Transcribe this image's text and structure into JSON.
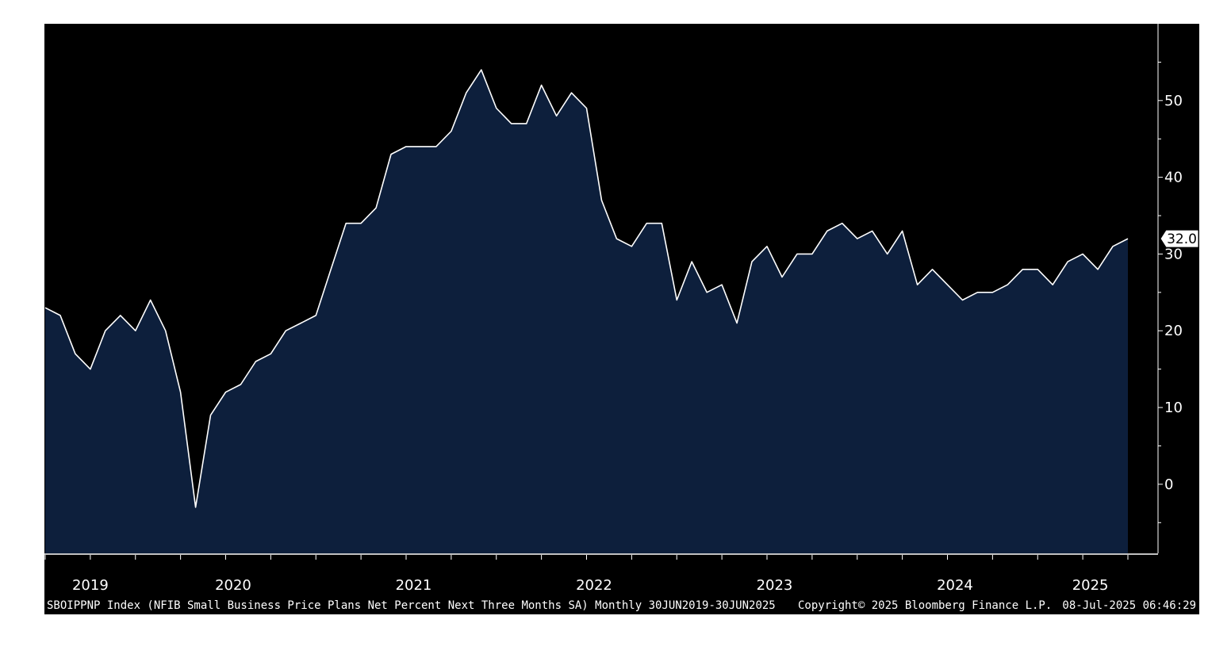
{
  "footer": {
    "description": "SBOIPPNP Index (NFIB Small Business Price Plans Net Percent Next Three Months SA)  Monthly 30JUN2019-30JUN2025",
    "copyright": "Copyright© 2025 Bloomberg Finance L.P.",
    "timestamp": "08-Jul-2025 06:46:29"
  },
  "colors": {
    "plot_background": "#000000",
    "area_fill": "#0d1f3c",
    "line": "#ffffff",
    "footer_background": "#000000",
    "text": "#ffffff"
  },
  "chart_data": {
    "type": "area",
    "ylim": [
      -9,
      60
    ],
    "y_ticks": [
      0,
      10,
      20,
      30,
      40,
      50
    ],
    "x_year_labels": [
      "2019",
      "2020",
      "2021",
      "2022",
      "2023",
      "2024",
      "2025"
    ],
    "last_value_label": "32.0",
    "grid": false,
    "legend": "none",
    "series": [
      {
        "x": [
          "2019-06",
          "2019-07",
          "2019-08",
          "2019-09",
          "2019-10",
          "2019-11",
          "2019-12",
          "2020-01",
          "2020-02",
          "2020-03",
          "2020-04",
          "2020-05",
          "2020-06",
          "2020-07",
          "2020-08",
          "2020-09",
          "2020-10",
          "2020-11",
          "2020-12",
          "2021-01",
          "2021-02",
          "2021-03",
          "2021-04",
          "2021-05",
          "2021-06",
          "2021-07",
          "2021-08",
          "2021-09",
          "2021-10",
          "2021-11",
          "2021-12",
          "2022-01",
          "2022-02",
          "2022-03",
          "2022-04",
          "2022-05",
          "2022-06",
          "2022-07",
          "2022-08",
          "2022-09",
          "2022-10",
          "2022-11",
          "2022-12",
          "2023-01",
          "2023-02",
          "2023-03",
          "2023-04",
          "2023-05",
          "2023-06",
          "2023-07",
          "2023-08",
          "2023-09",
          "2023-10",
          "2023-11",
          "2023-12",
          "2024-01",
          "2024-02",
          "2024-03",
          "2024-04",
          "2024-05",
          "2024-06",
          "2024-07",
          "2024-08",
          "2024-09",
          "2024-10",
          "2024-11",
          "2024-12",
          "2025-01",
          "2025-02",
          "2025-03",
          "2025-04",
          "2025-05",
          "2025-06"
        ],
        "values": [
          23,
          22,
          17,
          15,
          20,
          22,
          20,
          24,
          20,
          12,
          -3,
          9,
          12,
          13,
          16,
          17,
          20,
          21,
          22,
          28,
          34,
          34,
          36,
          43,
          44,
          44,
          44,
          46,
          51,
          54,
          49,
          47,
          47,
          52,
          48,
          51,
          49,
          37,
          32,
          31,
          34,
          34,
          24,
          29,
          25,
          26,
          21,
          29,
          31,
          27,
          30,
          30,
          33,
          34,
          32,
          33,
          30,
          33,
          26,
          28,
          26,
          24,
          25,
          25,
          26,
          28,
          28,
          26,
          29,
          30,
          28,
          31,
          32
        ]
      }
    ]
  }
}
